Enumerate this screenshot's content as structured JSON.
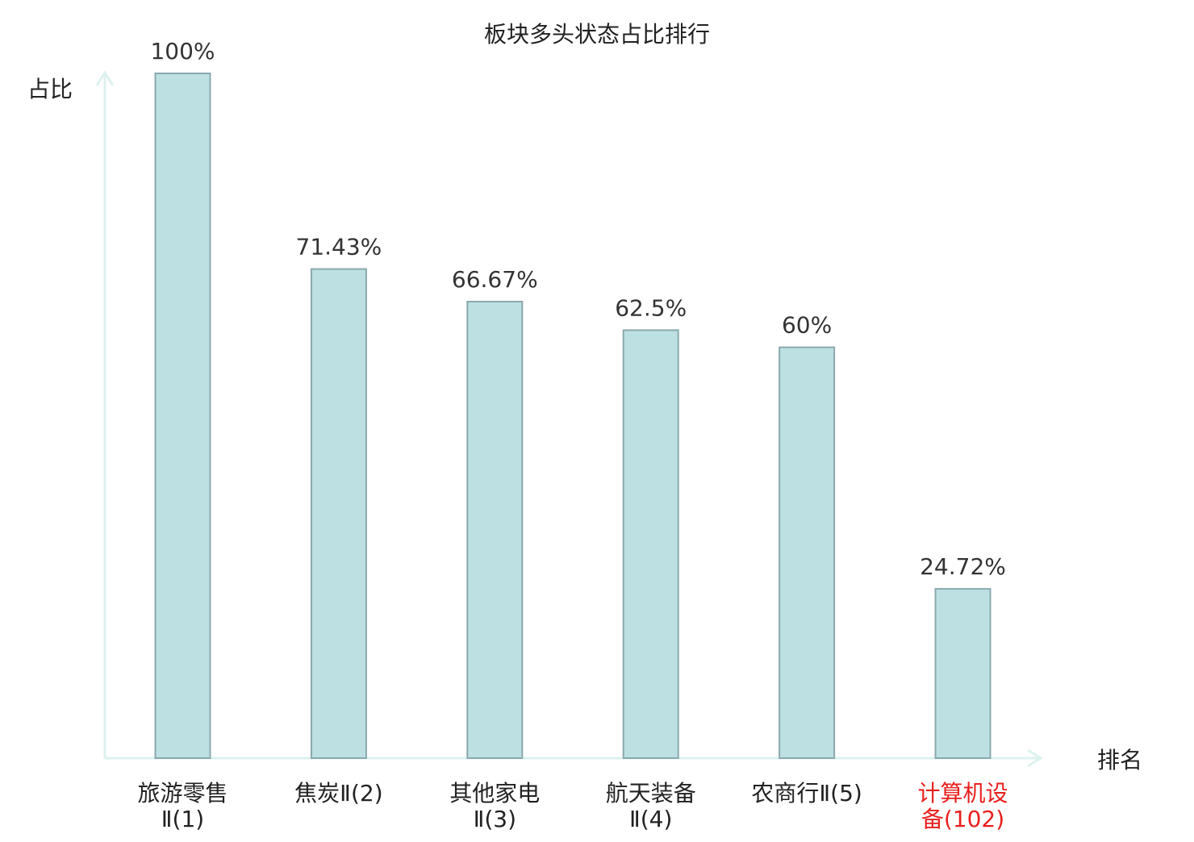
{
  "colors": {
    "bar_fill": "#bde0e3",
    "bar_stroke": "#8aa9ad",
    "axis": "#ddf2ef",
    "text": "#222222",
    "value_label": "#333333",
    "highlight": "#e8201e"
  },
  "chart_data": {
    "type": "bar",
    "title": "板块多头状态占比排行",
    "ylabel": "占比",
    "xlabel": "排名",
    "ylim": [
      0,
      100
    ],
    "grid": false,
    "highlight_index": 5,
    "categories": [
      [
        "旅游零售",
        "Ⅱ(1)"
      ],
      [
        "焦炭Ⅱ(2)"
      ],
      [
        "其他家电",
        "Ⅱ(3)"
      ],
      [
        "航天装备",
        "Ⅱ(4)"
      ],
      [
        "农商行Ⅱ(5)"
      ],
      [
        "计算机设",
        "备(102)"
      ]
    ],
    "values": [
      100,
      71.43,
      66.67,
      62.5,
      60,
      24.72
    ],
    "value_labels": [
      "100%",
      "71.43%",
      "66.67%",
      "62.5%",
      "60%",
      "24.72%"
    ]
  }
}
